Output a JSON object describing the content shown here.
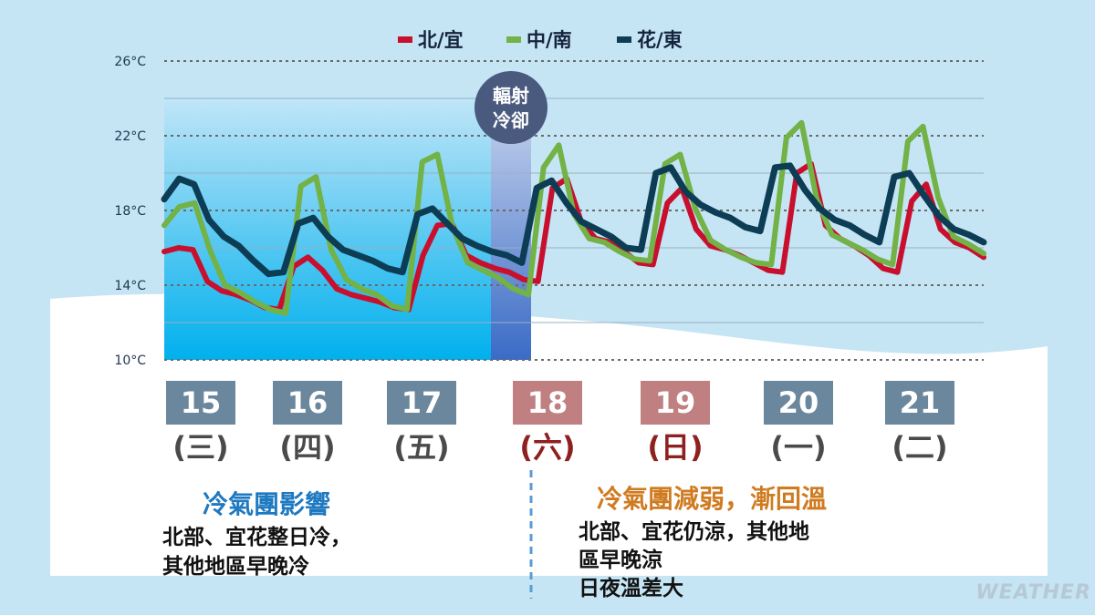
{
  "chart_data": {
    "type": "line",
    "y_tick_labels": [
      "26°C",
      "22°C",
      "18°C",
      "14°C",
      "10°C"
    ],
    "ylim": [
      10,
      26
    ],
    "annotation": "輻射冷卻",
    "series": [
      {
        "name": "北/宜",
        "color": "#c8102e",
        "values": [
          15.8,
          16.0,
          15.9,
          14.2,
          13.7,
          13.5,
          13.2,
          12.8,
          12.7,
          15.0,
          15.5,
          14.8,
          13.8,
          13.5,
          13.3,
          13.1,
          12.8,
          12.7,
          15.6,
          17.2,
          17.3,
          15.6,
          15.2,
          14.9,
          14.7,
          14.3,
          14.2,
          19.2,
          19.7,
          17.4,
          16.5,
          16.3,
          15.8,
          15.2,
          15.1,
          18.4,
          19.2,
          17.0,
          16.1,
          15.9,
          15.6,
          15.2,
          14.8,
          14.7,
          20.0,
          20.5,
          17.2,
          16.5,
          16.1,
          15.6,
          14.9,
          14.7,
          18.5,
          19.4,
          17.0,
          16.3,
          16.0,
          15.5
        ]
      },
      {
        "name": "中/南",
        "color": "#73b246",
        "values": [
          17.2,
          18.2,
          18.4,
          15.9,
          14.0,
          13.6,
          13.1,
          12.7,
          12.5,
          19.3,
          19.8,
          15.9,
          14.3,
          13.8,
          13.5,
          12.9,
          12.7,
          20.6,
          21.0,
          17.1,
          15.2,
          14.8,
          14.4,
          13.8,
          13.5,
          20.3,
          21.5,
          17.8,
          16.5,
          16.3,
          15.8,
          15.4,
          15.3,
          20.5,
          21.0,
          18.1,
          16.4,
          15.9,
          15.5,
          15.2,
          15.1,
          21.9,
          22.7,
          18.6,
          16.7,
          16.3,
          15.9,
          15.4,
          15.1,
          21.7,
          22.5,
          18.7,
          16.6,
          16.2,
          15.7
        ]
      },
      {
        "name": "花/東",
        "color": "#0d3d55",
        "values": [
          18.6,
          19.7,
          19.4,
          17.5,
          16.6,
          16.1,
          15.3,
          14.6,
          14.7,
          17.3,
          17.6,
          16.6,
          15.9,
          15.6,
          15.3,
          14.9,
          14.7,
          17.8,
          18.1,
          17.3,
          16.5,
          16.1,
          15.8,
          15.6,
          15.2,
          19.2,
          19.6,
          18.4,
          17.4,
          17.0,
          16.6,
          16.0,
          15.9,
          20.0,
          20.3,
          19.0,
          18.3,
          17.9,
          17.6,
          17.1,
          16.9,
          20.3,
          20.4,
          19.1,
          18.1,
          17.5,
          17.2,
          16.7,
          16.3,
          19.8,
          20.0,
          18.8,
          17.7,
          17.0,
          16.7,
          16.3
        ]
      }
    ]
  },
  "days": [
    {
      "date": "15",
      "weekday": "(三)",
      "weekend": false
    },
    {
      "date": "16",
      "weekday": "(四)",
      "weekend": false
    },
    {
      "date": "17",
      "weekday": "(五)",
      "weekend": false
    },
    {
      "date": "18",
      "weekday": "(六)",
      "weekend": true
    },
    {
      "date": "19",
      "weekday": "(日)",
      "weekend": true
    },
    {
      "date": "20",
      "weekday": "(一)",
      "weekend": false
    },
    {
      "date": "21",
      "weekday": "(二)",
      "weekend": false
    }
  ],
  "left_panel": {
    "title": "冷氣團影響",
    "lines": [
      "北部、宜花整日冷，",
      "其他地區早晚冷"
    ]
  },
  "right_panel": {
    "title": "冷氣團減弱，漸回溫",
    "lines": [
      "北部、宜花仍涼，其他地",
      "區早晚涼",
      "日夜溫差大"
    ]
  },
  "watermark": "WEATHER",
  "colors": {
    "weekday_box": "#6a879e",
    "weekend_box": "#c07f80",
    "weekday_text": "#4a4a4a",
    "weekend_text": "#8e2020",
    "left_title": "#1e79c1",
    "right_title": "#cf7b20"
  }
}
